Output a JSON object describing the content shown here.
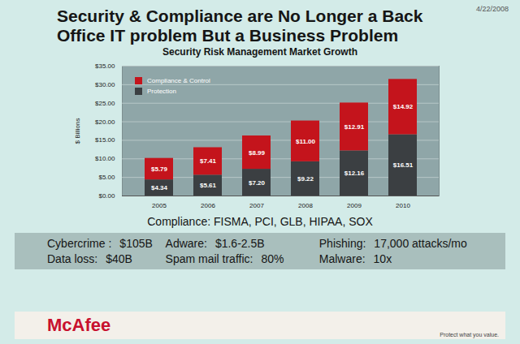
{
  "chart_data": {
    "type": "bar",
    "title": "Security Risk Management Market Growth",
    "y_label": "$ Billions",
    "categories": [
      "2005",
      "2006",
      "2007",
      "2008",
      "2009",
      "2010"
    ],
    "series": [
      {
        "name": "Protection",
        "color": "#3b3f42",
        "values": [
          4.34,
          5.61,
          7.2,
          9.22,
          12.16,
          16.51
        ],
        "value_labels": [
          "$4.34",
          "$5.61",
          "$7.20",
          "$9.22",
          "$12.16",
          "$16.51"
        ]
      },
      {
        "name": "Compliance & Control",
        "color": "#c4141c",
        "values": [
          5.79,
          7.41,
          8.99,
          11.0,
          12.91,
          14.92
        ],
        "value_labels": [
          "$5.79",
          "$7.41",
          "$8.99",
          "$11.00",
          "$12.91",
          "$14.92"
        ]
      }
    ],
    "ylim": [
      0,
      35
    ],
    "yticks": [
      {
        "value": 0,
        "label": "$0.00"
      },
      {
        "value": 5,
        "label": "$5.00"
      },
      {
        "value": 10,
        "label": "$10.00"
      },
      {
        "value": 15,
        "label": "$15.00"
      },
      {
        "value": 20,
        "label": "$20.00"
      },
      {
        "value": 25,
        "label": "$25.00"
      },
      {
        "value": 30,
        "label": "$30.00"
      },
      {
        "value": 35,
        "label": "$35.00"
      }
    ],
    "grid": true,
    "stacked": true,
    "data_labels": true,
    "legend": "top-left"
  },
  "slide": {
    "title": "Security & Compliance are No Longer a Back Office IT problem But a Business Problem",
    "date": "4/22/2008",
    "compliance": "Compliance: FISMA, PCI, GLB, HIPAA, SOX",
    "stats": [
      {
        "label": "Cybercrime :",
        "value": "$105B"
      },
      {
        "label": "Adware:",
        "value": "$1.6-2.5B"
      },
      {
        "label": "Phishing:",
        "value": "17,000 attacks/mo"
      },
      {
        "label": "Data loss:",
        "value": "$40B"
      },
      {
        "label": "Spam mail traffic:",
        "value": "80%"
      },
      {
        "label": "Malware:",
        "value": "10x"
      }
    ],
    "brand": "McAfee",
    "tagline": "Protect what you value."
  }
}
